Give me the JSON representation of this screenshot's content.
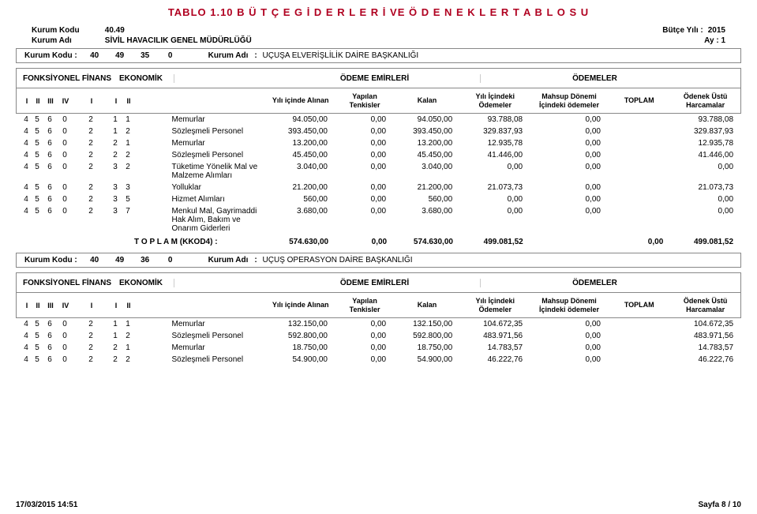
{
  "title": "TABLO 1.10  B Ü T Ç E    G İ D E R L E R İ   VE   Ö D E N E K L E R      T A B L O S U",
  "meta": {
    "kurum_kodu_label": "Kurum  Kodu",
    "kurum_kodu_value": "40.49",
    "kurum_adi_label": "Kurum  Adı",
    "kurum_adi_value": "SİVİL HAVACILIK GENEL MÜDÜRLÜĞÜ",
    "butce_yili_label": "Bütçe Yılı :",
    "butce_yili_value": "2015",
    "ay_label": "Ay",
    "ay_sep": ":",
    "ay_value": "1"
  },
  "headers": {
    "fons": "FONKSİYONEL FİNANS",
    "eko": "EKONOMİK",
    "emir": "ÖDEME EMİRLERİ",
    "odem": "ÖDEMELER",
    "code_labels": [
      "I",
      "II",
      "III",
      "IV",
      "I",
      "I",
      "II"
    ],
    "col1": "Yılı içinde Alınan",
    "col2": "Yapılan Tenkisler",
    "col3": "Kalan",
    "col4": "Yılı İçindeki Ödemeler",
    "col5": "Mahsup Dönemi İçindeki ödemeler",
    "col6": "TOPLAM",
    "col7": "Ödenek Üstü Harcamalar"
  },
  "sections": [
    {
      "kurum_row": {
        "kk_label": "Kurum Kodu :",
        "codes": [
          "40",
          "49",
          "35",
          "0"
        ],
        "ka_label": "Kurum Adı",
        "ka_sep": ":",
        "ka_value": "UÇUŞA ELVERİŞLİLİK DAİRE BAŞKANLIĞI"
      },
      "rows": [
        {
          "codes": [
            "4",
            "5",
            "6",
            "0",
            "2",
            "1",
            "1"
          ],
          "desc": "Memurlar",
          "v": [
            "94.050,00",
            "0,00",
            "94.050,00",
            "93.788,08",
            "0,00",
            "",
            "93.788,08"
          ]
        },
        {
          "codes": [
            "4",
            "5",
            "6",
            "0",
            "2",
            "1",
            "2"
          ],
          "desc": "Sözleşmeli Personel",
          "v": [
            "393.450,00",
            "0,00",
            "393.450,00",
            "329.837,93",
            "0,00",
            "",
            "329.837,93"
          ]
        },
        {
          "codes": [
            "4",
            "5",
            "6",
            "0",
            "2",
            "2",
            "1"
          ],
          "desc": "Memurlar",
          "v": [
            "13.200,00",
            "0,00",
            "13.200,00",
            "12.935,78",
            "0,00",
            "",
            "12.935,78"
          ]
        },
        {
          "codes": [
            "4",
            "5",
            "6",
            "0",
            "2",
            "2",
            "2"
          ],
          "desc": "Sözleşmeli Personel",
          "v": [
            "45.450,00",
            "0,00",
            "45.450,00",
            "41.446,00",
            "0,00",
            "",
            "41.446,00"
          ]
        },
        {
          "codes": [
            "4",
            "5",
            "6",
            "0",
            "2",
            "3",
            "2"
          ],
          "desc": "Tüketime Yönelik Mal ve Malzeme Alımları",
          "v": [
            "3.040,00",
            "0,00",
            "3.040,00",
            "0,00",
            "0,00",
            "",
            "0,00"
          ]
        },
        {
          "codes": [
            "4",
            "5",
            "6",
            "0",
            "2",
            "3",
            "3"
          ],
          "desc": "Yolluklar",
          "v": [
            "21.200,00",
            "0,00",
            "21.200,00",
            "21.073,73",
            "0,00",
            "",
            "21.073,73"
          ]
        },
        {
          "codes": [
            "4",
            "5",
            "6",
            "0",
            "2",
            "3",
            "5"
          ],
          "desc": "Hizmet Alımları",
          "v": [
            "560,00",
            "0,00",
            "560,00",
            "0,00",
            "0,00",
            "",
            "0,00"
          ]
        },
        {
          "codes": [
            "4",
            "5",
            "6",
            "0",
            "2",
            "3",
            "7"
          ],
          "desc": "Menkul Mal, Gayrimaddi Hak Alım, Bakım ve Onarım Giderleri",
          "v": [
            "3.680,00",
            "0,00",
            "3.680,00",
            "0,00",
            "0,00",
            "",
            "0,00"
          ]
        }
      ],
      "total": {
        "label": "T O P L A M (KKOD4)  :",
        "v": [
          "574.630,00",
          "0,00",
          "574.630,00",
          "499.081,52",
          "",
          "0,00",
          "499.081,52"
        ]
      }
    },
    {
      "kurum_row": {
        "kk_label": "Kurum Kodu :",
        "codes": [
          "40",
          "49",
          "36",
          "0"
        ],
        "ka_label": "Kurum Adı",
        "ka_sep": ":",
        "ka_value": "UÇUŞ OPERASYON DAİRE BAŞKANLIĞI"
      },
      "rows": [
        {
          "codes": [
            "4",
            "5",
            "6",
            "0",
            "2",
            "1",
            "1"
          ],
          "desc": "Memurlar",
          "v": [
            "132.150,00",
            "0,00",
            "132.150,00",
            "104.672,35",
            "0,00",
            "",
            "104.672,35"
          ]
        },
        {
          "codes": [
            "4",
            "5",
            "6",
            "0",
            "2",
            "1",
            "2"
          ],
          "desc": "Sözleşmeli Personel",
          "v": [
            "592.800,00",
            "0,00",
            "592.800,00",
            "483.971,56",
            "0,00",
            "",
            "483.971,56"
          ]
        },
        {
          "codes": [
            "4",
            "5",
            "6",
            "0",
            "2",
            "2",
            "1"
          ],
          "desc": "Memurlar",
          "v": [
            "18.750,00",
            "0,00",
            "18.750,00",
            "14.783,57",
            "0,00",
            "",
            "14.783,57"
          ]
        },
        {
          "codes": [
            "4",
            "5",
            "6",
            "0",
            "2",
            "2",
            "2"
          ],
          "desc": "Sözleşmeli Personel",
          "v": [
            "54.900,00",
            "0,00",
            "54.900,00",
            "46.222,76",
            "0,00",
            "",
            "46.222,76"
          ]
        }
      ]
    }
  ],
  "footer": {
    "timestamp": "17/03/2015 14:51",
    "page": "Sayfa 8 / 10"
  },
  "colors": {
    "title": "#b00020",
    "border": "#888888",
    "text": "#000000",
    "bg": "#ffffff"
  }
}
